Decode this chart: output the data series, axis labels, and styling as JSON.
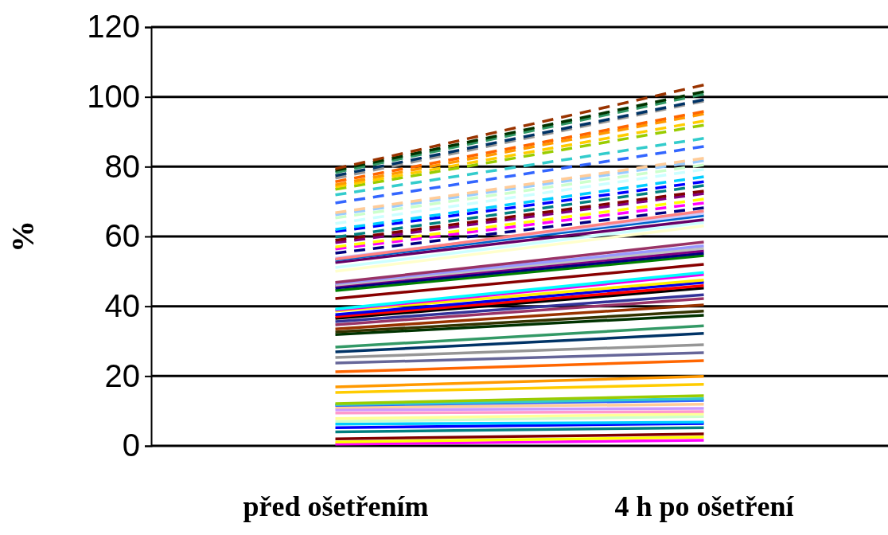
{
  "chart_data": {
    "type": "line",
    "ylabel": "%",
    "categories": [
      "před ošetřením",
      "4 h po ošetření"
    ],
    "ylim": [
      0,
      120
    ],
    "yticks": [
      0,
      20,
      40,
      60,
      80,
      100,
      120
    ],
    "grid": "y",
    "marker": "none",
    "series": [
      {
        "color": "#ff00ff",
        "values": [
          0.5,
          1.6
        ],
        "line_style": "solid"
      },
      {
        "color": "#ffff00",
        "values": [
          1.1,
          2.5
        ],
        "line_style": "solid"
      },
      {
        "color": "#800000",
        "values": [
          2,
          3.4
        ],
        "line_style": "solid"
      },
      {
        "color": "#008080",
        "values": [
          4,
          5.2
        ],
        "line_style": "solid"
      },
      {
        "color": "#0000ff",
        "values": [
          5.2,
          6.4
        ],
        "line_style": "solid"
      },
      {
        "color": "#00ccff",
        "values": [
          6.2,
          6.8
        ],
        "line_style": "solid"
      },
      {
        "color": "#ccffcc",
        "values": [
          7,
          8.4
        ],
        "line_style": "solid"
      },
      {
        "color": "#ffff99",
        "values": [
          7.8,
          9.1
        ],
        "line_style": "solid"
      },
      {
        "color": "#ff99cc",
        "values": [
          9.4,
          9.8
        ],
        "line_style": "solid"
      },
      {
        "color": "#cc99ff",
        "values": [
          10.3,
          10.7
        ],
        "line_style": "solid"
      },
      {
        "color": "#ffcc99",
        "values": [
          11,
          11.9
        ],
        "line_style": "solid"
      },
      {
        "color": "#3366ff",
        "values": [
          11.6,
          13
        ],
        "line_style": "solid"
      },
      {
        "color": "#33cccc",
        "values": [
          11.8,
          13.5
        ],
        "line_style": "solid"
      },
      {
        "color": "#99cc00",
        "values": [
          12.1,
          14.4
        ],
        "line_style": "solid"
      },
      {
        "color": "#ffcc00",
        "values": [
          15.3,
          17.6
        ],
        "line_style": "solid"
      },
      {
        "color": "#ff9900",
        "values": [
          16.9,
          19.9
        ],
        "line_style": "solid"
      },
      {
        "color": "#ff6600",
        "values": [
          21.2,
          24.4
        ],
        "line_style": "solid"
      },
      {
        "color": "#666699",
        "values": [
          23.7,
          26.7
        ],
        "line_style": "solid"
      },
      {
        "color": "#969696",
        "values": [
          25.3,
          29
        ],
        "line_style": "solid"
      },
      {
        "color": "#003366",
        "values": [
          26.9,
          32.2
        ],
        "line_style": "solid"
      },
      {
        "color": "#339966",
        "values": [
          28.3,
          34.4
        ],
        "line_style": "solid"
      },
      {
        "color": "#003300",
        "values": [
          31.9,
          37.4
        ],
        "line_style": "solid"
      },
      {
        "color": "#333300",
        "values": [
          32.6,
          38.6
        ],
        "line_style": "solid"
      },
      {
        "color": "#993300",
        "values": [
          33.5,
          40.4
        ],
        "line_style": "solid"
      },
      {
        "color": "#993366",
        "values": [
          34.7,
          42.2
        ],
        "line_style": "solid"
      },
      {
        "color": "#333399",
        "values": [
          35.6,
          43.3
        ],
        "line_style": "solid"
      },
      {
        "color": "#000000",
        "values": [
          36.5,
          45.2
        ],
        "line_style": "solid"
      },
      {
        "color": "#ff0000",
        "values": [
          37,
          45.9
        ],
        "line_style": "solid"
      },
      {
        "color": "#0000ee",
        "values": [
          37.6,
          46.8
        ],
        "line_style": "solid"
      },
      {
        "color": "#ffee00",
        "values": [
          38.6,
          47.5
        ],
        "line_style": "solid"
      },
      {
        "color": "#ee00ee",
        "values": [
          38.9,
          49.1
        ],
        "line_style": "solid"
      },
      {
        "color": "#00ffff",
        "values": [
          39.2,
          49.7
        ],
        "line_style": "solid"
      },
      {
        "color": "#880000",
        "values": [
          42.2,
          52
        ],
        "line_style": "solid"
      },
      {
        "color": "#008000",
        "values": [
          44.5,
          54.5
        ],
        "line_style": "solid"
      },
      {
        "color": "#000080",
        "values": [
          45.2,
          55.2
        ],
        "line_style": "solid"
      },
      {
        "color": "#800080",
        "values": [
          45.8,
          55.9
        ],
        "line_style": "solid"
      },
      {
        "color": "#c0c0c0",
        "values": [
          46.1,
          56.6
        ],
        "line_style": "solid"
      },
      {
        "color": "#9999ff",
        "values": [
          46.5,
          57.3
        ],
        "line_style": "solid"
      },
      {
        "color": "#993366",
        "values": [
          46.8,
          58.4
        ],
        "line_style": "solid"
      },
      {
        "color": "#ffffcc",
        "values": [
          50,
          63
        ],
        "line_style": "solid"
      },
      {
        "color": "#ccffff",
        "values": [
          51.1,
          64
        ],
        "line_style": "solid"
      },
      {
        "color": "#660066",
        "values": [
          52.5,
          64.8
        ],
        "line_style": "solid"
      },
      {
        "color": "#0066cc",
        "values": [
          53.2,
          66
        ],
        "line_style": "solid"
      },
      {
        "color": "#ccccff",
        "values": [
          53.8,
          66.6
        ],
        "line_style": "solid"
      },
      {
        "color": "#ff8080",
        "values": [
          53.5,
          67.3
        ],
        "line_style": "solid"
      },
      {
        "color": "#000080",
        "values": [
          55.2,
          68.2
        ],
        "line_style": "dashed"
      },
      {
        "color": "#ff00ff",
        "values": [
          56.4,
          69.6
        ],
        "line_style": "dashed"
      },
      {
        "color": "#ffff00",
        "values": [
          57,
          70.7
        ],
        "line_style": "dashed"
      },
      {
        "color": "#800080",
        "values": [
          58.2,
          72.3
        ],
        "line_style": "dashed"
      },
      {
        "color": "#800000",
        "values": [
          58.9,
          73
        ],
        "line_style": "dashed"
      },
      {
        "color": "#008080",
        "values": [
          59.8,
          74.6
        ],
        "line_style": "dashed"
      },
      {
        "color": "#0000ff",
        "values": [
          61.4,
          75.7
        ],
        "line_style": "dashed"
      },
      {
        "color": "#00ccff",
        "values": [
          62,
          77.1
        ],
        "line_style": "dashed"
      },
      {
        "color": "#ccffff",
        "values": [
          63.7,
          79.2
        ],
        "line_style": "dashed"
      },
      {
        "color": "#ccffcc",
        "values": [
          65.3,
          80.5
        ],
        "line_style": "dashed"
      },
      {
        "color": "#99ccff",
        "values": [
          66.2,
          81.7
        ],
        "line_style": "dashed"
      },
      {
        "color": "#ffcc99",
        "values": [
          66.8,
          82.4
        ],
        "line_style": "dashed"
      },
      {
        "color": "#3366ff",
        "values": [
          69.6,
          85.8
        ],
        "line_style": "dashed"
      },
      {
        "color": "#33cccc",
        "values": [
          71.9,
          88.1
        ],
        "line_style": "dashed"
      },
      {
        "color": "#99cc00",
        "values": [
          73.5,
          91.9
        ],
        "line_style": "dashed"
      },
      {
        "color": "#ffcc00",
        "values": [
          74.2,
          93.1
        ],
        "line_style": "dashed"
      },
      {
        "color": "#ff9900",
        "values": [
          74.8,
          95.1
        ],
        "line_style": "dashed"
      },
      {
        "color": "#ff6600",
        "values": [
          75.7,
          95.8
        ],
        "line_style": "dashed"
      },
      {
        "color": "#969696",
        "values": [
          76.7,
          98.8
        ],
        "line_style": "dashed"
      },
      {
        "color": "#003366",
        "values": [
          77.4,
          99.2
        ],
        "line_style": "dashed"
      },
      {
        "color": "#339966",
        "values": [
          78.3,
          100.8
        ],
        "line_style": "dashed"
      },
      {
        "color": "#003300",
        "values": [
          78.9,
          101.5
        ],
        "line_style": "dashed"
      },
      {
        "color": "#993300",
        "values": [
          79.4,
          103.4
        ],
        "line_style": "dashed"
      }
    ]
  }
}
